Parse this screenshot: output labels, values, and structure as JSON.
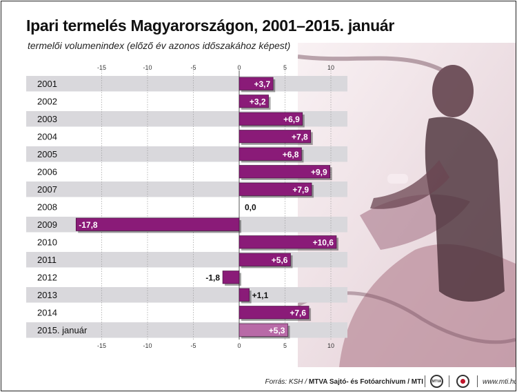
{
  "title": "Ipari termelés Magyarországon, 2001–2015. január",
  "subtitle": "termelői volumenindex (előző év azonos időszakához képest)",
  "footer": {
    "source_prefix": "Forrás: KSH / ",
    "source_bold": "MTVA Sajtó- és Fotóarchívum / MTI",
    "logo_text": "MTVA",
    "website": "www.mti.hu"
  },
  "colors": {
    "bar": "#8a1b78",
    "bar_last": "#b86aa7",
    "row_band": "#d9d8dc",
    "photo_tint": "#e8c9d2"
  },
  "chart_data": {
    "type": "bar",
    "orientation": "horizontal",
    "categories": [
      "2001",
      "2002",
      "2003",
      "2004",
      "2005",
      "2006",
      "2007",
      "2008",
      "2009",
      "2010",
      "2011",
      "2012",
      "2013",
      "2014",
      "2015. január"
    ],
    "values": [
      3.7,
      3.2,
      6.9,
      7.8,
      6.8,
      9.9,
      7.9,
      0.0,
      -17.8,
      10.6,
      5.6,
      -1.8,
      1.1,
      7.6,
      5.3
    ],
    "labels": [
      "+3,7",
      "+3,2",
      "+6,9",
      "+7,8",
      "+6,8",
      "+9,9",
      "+7,9",
      "0,0",
      "-17,8",
      "+10,6",
      "+5,6",
      "-1,8",
      "+1,1",
      "+7,6",
      "+5,3"
    ],
    "xlim": [
      -18,
      12
    ],
    "ticks": [
      -15,
      -10,
      -5,
      0,
      5,
      10
    ],
    "tick_labels": [
      "-15",
      "-10",
      "-5",
      "0",
      "5",
      "10"
    ],
    "grid": true,
    "highlight_last": true
  }
}
